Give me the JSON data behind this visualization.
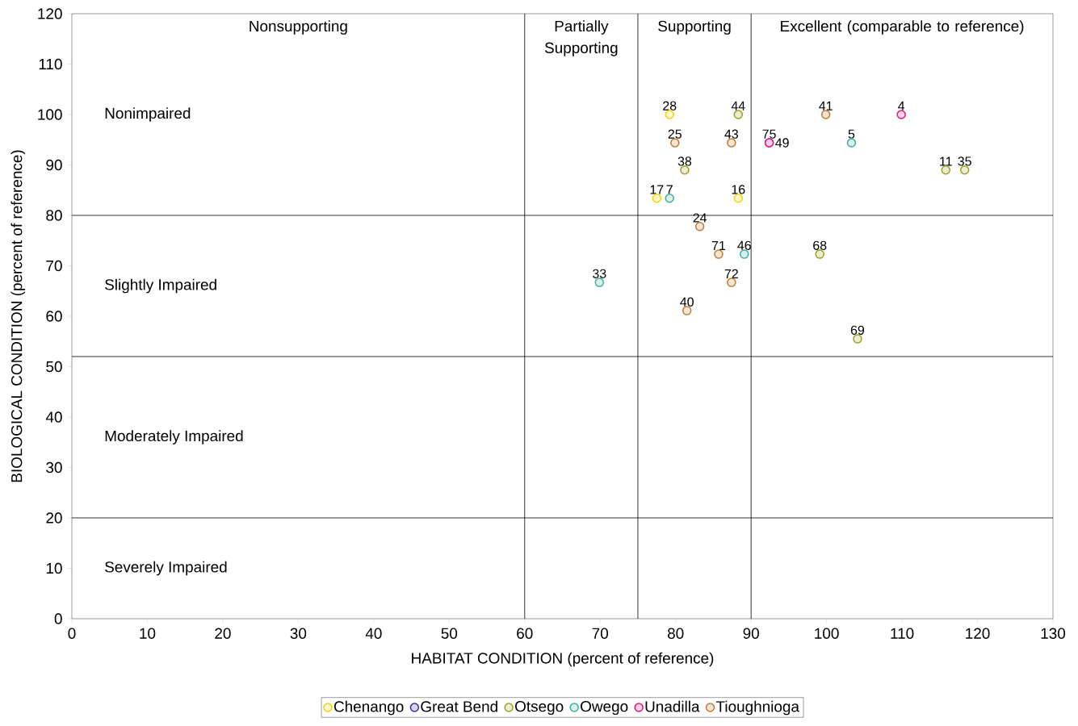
{
  "chart_data": {
    "type": "scatter",
    "xlabel": "HABITAT CONDITION (percent of reference)",
    "ylabel": "BIOLOGICAL CONDITION (percent of reference)",
    "xlim": [
      0,
      130
    ],
    "ylim": [
      0,
      120
    ],
    "xticks": [
      0,
      10,
      20,
      30,
      40,
      50,
      60,
      70,
      80,
      90,
      100,
      110,
      120,
      130
    ],
    "yticks": [
      0,
      10,
      20,
      30,
      40,
      50,
      60,
      70,
      80,
      90,
      100,
      110,
      120
    ],
    "grid": false,
    "legend": "bottom",
    "marker": "circle",
    "series": [
      {
        "name": "Chenango",
        "color": "#f2d500",
        "x": [
          79.2,
          77.5,
          88.3
        ],
        "values": [
          100,
          83.4,
          83.4
        ]
      },
      {
        "name": "Great Bend",
        "color": "#3a2a9a"
      },
      {
        "name": "Otsego",
        "color": "#9aa020",
        "x": [
          88.3,
          81.2,
          115.8,
          118.3,
          99.1,
          104.1
        ],
        "values": [
          100,
          89,
          89,
          89,
          72.3,
          55.5
        ]
      },
      {
        "name": "Owego",
        "color": "#3cb09a",
        "x": [
          79.2,
          69.9,
          89.1,
          103.3
        ],
        "values": [
          83.4,
          66.7,
          72.3,
          94.4
        ]
      },
      {
        "name": "Unadilla",
        "color": "#e0157a",
        "x": [
          92.4,
          92.4,
          109.9
        ],
        "values": [
          94.4,
          94.4,
          100
        ]
      },
      {
        "name": "Tioughnioga",
        "color": "#c07a30",
        "x": [
          79.9,
          87.4,
          99.9,
          83.2,
          85.7,
          87.4,
          81.5
        ],
        "values": [
          94.4,
          94.4,
          100,
          77.8,
          72.3,
          66.7,
          61.1
        ]
      }
    ],
    "ref_lines": [
      {
        "axis": "y",
        "value": 80
      },
      {
        "axis": "y",
        "value": 52
      },
      {
        "axis": "y",
        "value": 20
      },
      {
        "axis": "x",
        "value": 60
      },
      {
        "axis": "x",
        "value": 75
      },
      {
        "axis": "x",
        "value": 90
      }
    ],
    "annotations": [
      "Nonsupporting",
      "Partially Supporting",
      "Supporting",
      "Excellent (comparable to reference)",
      "Nonimpaired",
      "Slightly Impaired",
      "Moderately Impaired",
      "Severely Impaired",
      {
        "text": "28",
        "x": 79.2,
        "y": 100
      },
      {
        "text": "17",
        "x": 77.5,
        "y": 83.4
      },
      {
        "text": "16",
        "x": 88.3,
        "y": 83.4
      },
      {
        "text": "44",
        "x": 88.3,
        "y": 100
      },
      {
        "text": "38",
        "x": 81.2,
        "y": 89
      },
      {
        "text": "11",
        "x": 115.8,
        "y": 89
      },
      {
        "text": "35",
        "x": 118.3,
        "y": 89
      },
      {
        "text": "68",
        "x": 99.1,
        "y": 72.3
      },
      {
        "text": "69",
        "x": 104.1,
        "y": 55.5
      },
      {
        "text": "7",
        "x": 79.2,
        "y": 83.4
      },
      {
        "text": "33",
        "x": 69.9,
        "y": 66.7
      },
      {
        "text": "46",
        "x": 89.1,
        "y": 72.3
      },
      {
        "text": "5",
        "x": 103.3,
        "y": 94.4
      },
      {
        "text": "75",
        "x": 92.4,
        "y": 94.4
      },
      {
        "text": "49",
        "x": 92.4,
        "y": 94.4
      },
      {
        "text": "4",
        "x": 109.9,
        "y": 100
      },
      {
        "text": "25",
        "x": 79.9,
        "y": 94.4
      },
      {
        "text": "43",
        "x": 87.4,
        "y": 94.4
      },
      {
        "text": "41",
        "x": 99.9,
        "y": 100
      },
      {
        "text": "24",
        "x": 83.2,
        "y": 77.8
      },
      {
        "text": "71",
        "x": 85.7,
        "y": 72.3
      },
      {
        "text": "72",
        "x": 87.4,
        "y": 66.7
      },
      {
        "text": "40",
        "x": 81.5,
        "y": 61.1
      }
    ]
  }
}
